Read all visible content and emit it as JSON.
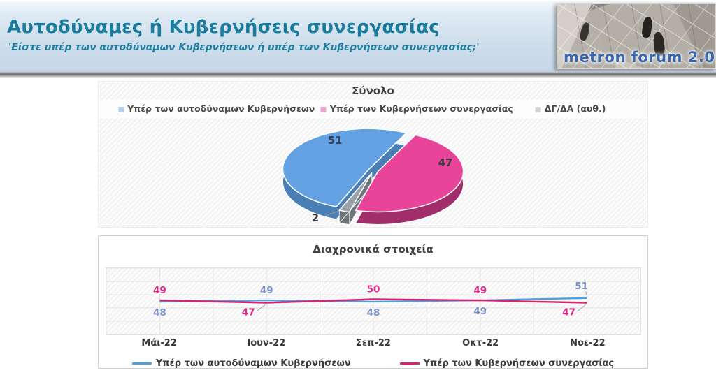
{
  "header": {
    "title": "Αυτοδύναμες ή Κυβερνήσεις συνεργασίας",
    "subtitle": "'Είστε υπέρ των αυτοδύναμων Κυβερνήσεων ή υπέρ των Κυβερνήσεων συνεργασίας;'",
    "logo_text": "metron forum 2.0"
  },
  "colors": {
    "accent_teal": "#1A7C9C",
    "series_blue": "#4F9FDC",
    "series_pink": "#D6246E",
    "pie_blue": "#63A1E3",
    "pie_pink": "#E8459A",
    "pie_gray": "#9BA3A9"
  },
  "chart_data": [
    {
      "type": "pie",
      "title": "Σύνολο",
      "labels": [
        "Υπέρ των αυτοδύναμων Κυβερνήσεων",
        "Υπέρ των Κυβερνήσεων συνεργασίας",
        "ΔΓ/ΔΑ (αυθ.)"
      ],
      "values": [
        51,
        47,
        2
      ],
      "data_labels": [
        "51",
        "47",
        "2"
      ],
      "colors": [
        "#63A1E3",
        "#E8459A",
        "#9BA3A9"
      ],
      "side_colors": [
        "#4A7FB5",
        "#A12E6B",
        "#6D747A"
      ],
      "label_colors": [
        "#36425A",
        "#3D3D3D",
        "#3D3D3D"
      ],
      "legend_position": "top",
      "style_3d": true,
      "render": {
        "start_angle_deg": 26,
        "draw_order": [
          1,
          2,
          0
        ],
        "label_pos": [
          [
            105,
            37
          ],
          [
            263,
            69
          ],
          [
            77,
            148
          ]
        ],
        "leader_2": [
          [
            90,
            141
          ],
          [
            110,
            133
          ]
        ]
      }
    },
    {
      "type": "line",
      "title": "Διαχρονικά στοιχεία",
      "categories": [
        "Μάι-22",
        "Ιουν-22",
        "Σεπ-22",
        "Οκτ-22",
        "Νοε-22"
      ],
      "series": [
        {
          "name": "Υπέρ των αυτοδύναμων Κυβερνήσεων",
          "color": "#4F9FDC",
          "label_color": "#7D94C6",
          "values": [
            48,
            49,
            48,
            49,
            51
          ],
          "label_side": [
            "below",
            "above",
            "below",
            "below",
            "above"
          ],
          "leader": [
            false,
            false,
            false,
            false,
            true
          ]
        },
        {
          "name": "Υπέρ των Κυβερνήσεων συνεργασίας",
          "color": "#D6246E",
          "label_color": "#E02585",
          "values": [
            49,
            47,
            50,
            49,
            47
          ],
          "label_side": [
            "above",
            "below",
            "above",
            "above",
            "below"
          ],
          "leader": [
            false,
            true,
            false,
            false,
            true
          ]
        }
      ],
      "grid": true,
      "y_axis_visible": false,
      "legend_position": "bottom"
    }
  ]
}
